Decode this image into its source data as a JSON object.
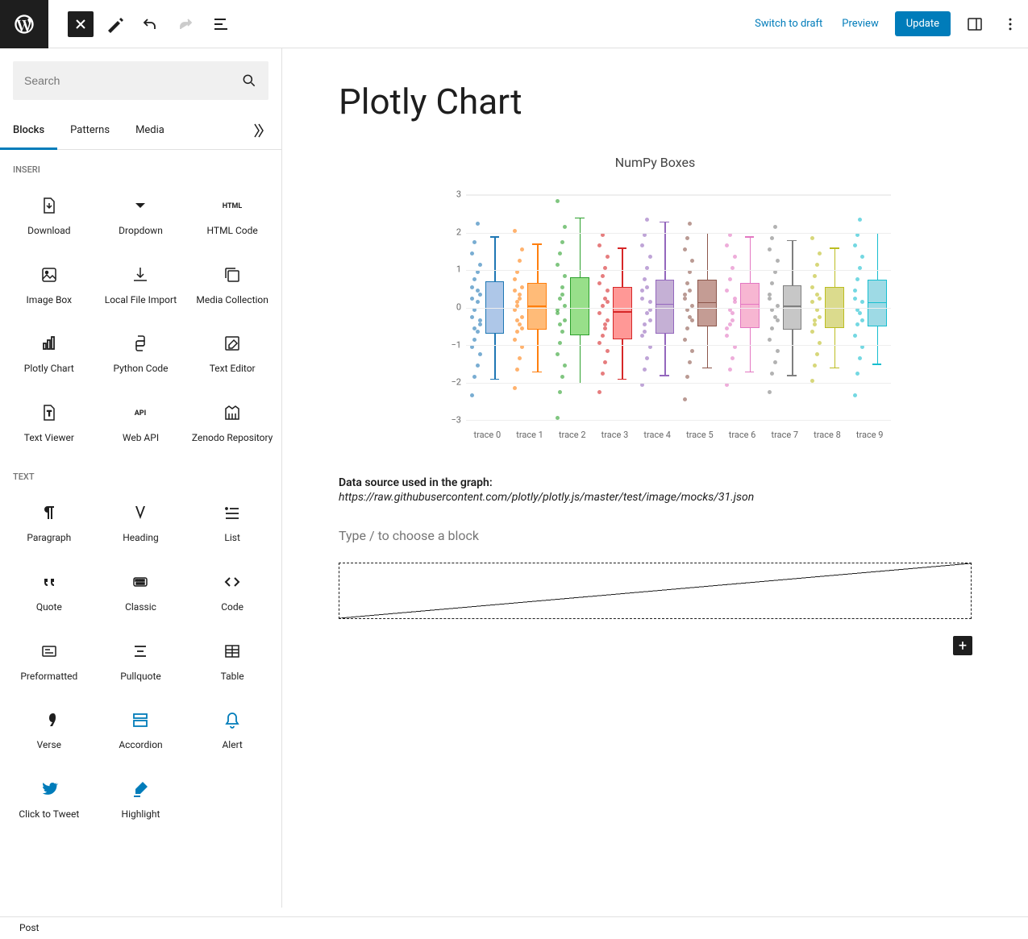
{
  "topbar": {
    "switch_draft": "Switch to draft",
    "preview": "Preview",
    "update": "Update"
  },
  "sidebar": {
    "search_placeholder": "Search",
    "tabs": [
      "Blocks",
      "Patterns",
      "Media"
    ],
    "active_tab": 0,
    "sections": [
      {
        "label": "INSERI",
        "items": [
          {
            "label": "Download",
            "icon": "download"
          },
          {
            "label": "Dropdown",
            "icon": "dropdown"
          },
          {
            "label": "HTML Code",
            "icon": "html"
          },
          {
            "label": "Image Box",
            "icon": "imagebox"
          },
          {
            "label": "Local File Import",
            "icon": "fileimport"
          },
          {
            "label": "Media Collection",
            "icon": "mediacoll"
          },
          {
            "label": "Plotly Chart",
            "icon": "plotly"
          },
          {
            "label": "Python Code",
            "icon": "python"
          },
          {
            "label": "Text Editor",
            "icon": "texteditor"
          },
          {
            "label": "Text Viewer",
            "icon": "textviewer"
          },
          {
            "label": "Web API",
            "icon": "webapi"
          },
          {
            "label": "Zenodo Repository",
            "icon": "zenodo"
          }
        ]
      },
      {
        "label": "TEXT",
        "items": [
          {
            "label": "Paragraph",
            "icon": "paragraph"
          },
          {
            "label": "Heading",
            "icon": "heading"
          },
          {
            "label": "List",
            "icon": "list"
          },
          {
            "label": "Quote",
            "icon": "quote"
          },
          {
            "label": "Classic",
            "icon": "classic"
          },
          {
            "label": "Code",
            "icon": "code"
          },
          {
            "label": "Preformatted",
            "icon": "preformatted"
          },
          {
            "label": "Pullquote",
            "icon": "pullquote"
          },
          {
            "label": "Table",
            "icon": "table"
          },
          {
            "label": "Verse",
            "icon": "verse"
          },
          {
            "label": "Accordion",
            "icon": "accordion",
            "accent": true
          },
          {
            "label": "Alert",
            "icon": "alert",
            "accent": true
          },
          {
            "label": "Click to Tweet",
            "icon": "tweet",
            "accent_fill": true
          },
          {
            "label": "Highlight",
            "icon": "highlight",
            "accent_fill": true
          }
        ]
      }
    ]
  },
  "canvas": {
    "title": "Plotly Chart",
    "chart": {
      "type": "boxplot",
      "title": "NumPy Boxes",
      "title_fontsize": 16,
      "background_color": "#ffffff",
      "grid_color": "#eeeeee",
      "ylim": [
        -3,
        3
      ],
      "ytick_step": 1,
      "yticks": [
        3,
        2,
        1,
        0,
        -1,
        -2,
        -3
      ],
      "x_labels": [
        "trace 0",
        "trace 1",
        "trace 2",
        "trace 3",
        "trace 4",
        "trace 5",
        "trace 6",
        "trace 7",
        "trace 8",
        "trace 9"
      ],
      "axis_fontsize": 11,
      "axis_color": "#666666",
      "traces": [
        {
          "color": "#1f77b4",
          "fill": "#aec7e8",
          "q1": -0.7,
          "median": 0.0,
          "q3": 0.7,
          "low": -1.9,
          "high": 1.9,
          "points": [
            -2.3,
            -1.8,
            -1.5,
            -1.2,
            -1.0,
            -0.8,
            -0.6,
            -0.4,
            -0.2,
            0.0,
            0.2,
            0.4,
            0.6,
            0.8,
            1.0,
            1.2,
            1.5,
            1.8,
            2.3,
            -0.3,
            0.3,
            -0.5,
            0.5
          ]
        },
        {
          "color": "#ff7f0e",
          "fill": "#ffbb78",
          "q1": -0.6,
          "median": 0.05,
          "q3": 0.65,
          "low": -1.7,
          "high": 1.7,
          "points": [
            -2.1,
            -1.6,
            -1.3,
            -1.0,
            -0.8,
            -0.6,
            -0.4,
            -0.2,
            0.0,
            0.2,
            0.4,
            0.6,
            0.8,
            1.0,
            1.3,
            1.6,
            2.1,
            -0.3,
            0.3,
            -0.5,
            0.5,
            0.1
          ]
        },
        {
          "color": "#2ca02c",
          "fill": "#98df8a",
          "q1": -0.75,
          "median": 0.0,
          "q3": 0.8,
          "low": -2.0,
          "high": 2.4,
          "points": [
            -2.9,
            -2.2,
            -1.8,
            -1.5,
            -1.2,
            -0.9,
            -0.6,
            -0.3,
            0.0,
            0.3,
            0.6,
            0.9,
            1.2,
            1.5,
            1.8,
            2.2,
            2.9,
            -0.4,
            0.4,
            0.1,
            -0.1
          ]
        },
        {
          "color": "#d62728",
          "fill": "#ff9896",
          "q1": -0.85,
          "median": -0.1,
          "q3": 0.55,
          "low": -1.9,
          "high": 1.6,
          "points": [
            -2.2,
            -1.7,
            -1.4,
            -1.1,
            -0.9,
            -0.7,
            -0.5,
            -0.3,
            -0.1,
            0.1,
            0.3,
            0.5,
            0.7,
            0.9,
            1.1,
            1.4,
            1.7,
            2.0,
            -0.4,
            0.2
          ]
        },
        {
          "color": "#9467bd",
          "fill": "#c5b0d5",
          "q1": -0.7,
          "median": 0.1,
          "q3": 0.75,
          "low": -1.8,
          "high": 2.3,
          "points": [
            -2.0,
            -1.6,
            -1.3,
            -1.0,
            -0.7,
            -0.4,
            -0.1,
            0.2,
            0.5,
            0.8,
            1.1,
            1.4,
            1.7,
            2.0,
            2.4,
            -0.3,
            0.3,
            -0.6,
            0.6,
            0.0
          ]
        },
        {
          "color": "#8c564b",
          "fill": "#c49c94",
          "q1": -0.5,
          "median": 0.15,
          "q3": 0.75,
          "low": -1.6,
          "high": 2.0,
          "points": [
            -2.4,
            -1.8,
            -1.4,
            -1.1,
            -0.8,
            -0.5,
            -0.2,
            0.1,
            0.4,
            0.7,
            1.0,
            1.3,
            1.6,
            1.9,
            2.3,
            -0.3,
            0.3,
            0.0,
            0.5
          ]
        },
        {
          "color": "#e377c2",
          "fill": "#f7b6d2",
          "q1": -0.55,
          "median": 0.1,
          "q3": 0.65,
          "low": -1.7,
          "high": 1.9,
          "points": [
            -2.0,
            -1.6,
            -1.3,
            -1.0,
            -0.7,
            -0.4,
            -0.1,
            0.2,
            0.5,
            0.8,
            1.1,
            1.4,
            1.7,
            2.0,
            -0.3,
            0.3,
            -0.5,
            0.0
          ]
        },
        {
          "color": "#7f7f7f",
          "fill": "#c7c7c7",
          "q1": -0.6,
          "median": 0.05,
          "q3": 0.6,
          "low": -1.8,
          "high": 1.8,
          "points": [
            -2.2,
            -1.7,
            -1.4,
            -1.1,
            -0.8,
            -0.5,
            -0.2,
            0.1,
            0.4,
            0.7,
            1.0,
            1.3,
            1.6,
            1.9,
            2.2,
            -0.3,
            0.3,
            0.0
          ]
        },
        {
          "color": "#bcbd22",
          "fill": "#dbdb8d",
          "q1": -0.55,
          "median": 0.0,
          "q3": 0.55,
          "low": -1.6,
          "high": 1.6,
          "points": [
            -1.9,
            -1.5,
            -1.2,
            -0.9,
            -0.6,
            -0.3,
            0.0,
            0.3,
            0.6,
            0.9,
            1.2,
            1.5,
            1.9,
            -0.4,
            0.4,
            -0.2,
            0.2
          ]
        },
        {
          "color": "#17becf",
          "fill": "#9edae5",
          "q1": -0.5,
          "median": 0.15,
          "q3": 0.75,
          "low": -1.5,
          "high": 2.0,
          "points": [
            -2.3,
            -1.7,
            -1.3,
            -1.0,
            -0.7,
            -0.4,
            -0.1,
            0.2,
            0.5,
            0.8,
            1.1,
            1.4,
            1.7,
            2.0,
            2.4,
            -0.3,
            0.3,
            0.0
          ]
        }
      ]
    },
    "source_label": "Data source used in the graph:",
    "source_url": "https://raw.githubusercontent.com/plotly/plotly.js/master/test/image/mocks/31.json",
    "block_placeholder": "Type / to choose a block"
  },
  "footer": {
    "post": "Post"
  }
}
